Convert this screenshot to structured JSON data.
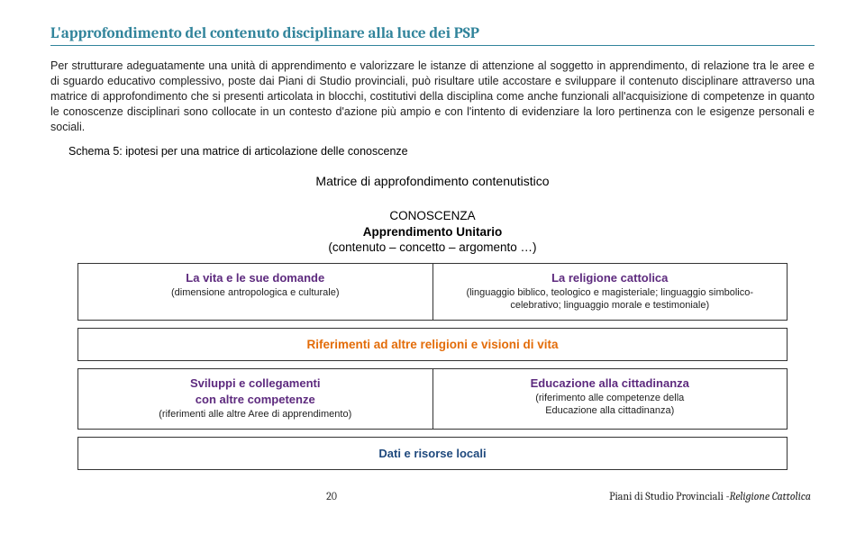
{
  "title": "L'approfondimento del contenuto disciplinare alla luce dei PSP",
  "body": "Per strutturare adeguatamente una unità di apprendimento e valorizzare le istanze di attenzione al soggetto in apprendimento, di relazione tra le aree e di sguardo educativo complessivo, poste dai Piani di Studio provinciali, può risultare utile accostare e sviluppare il contenuto disciplinare attraverso una matrice di approfondimento che si presenti articolata in blocchi, costitutivi della disciplina come anche funzionali all'acquisizione di competenze in quanto le conoscenze disciplinari sono collocate in un contesto d'azione più ampio e con l'intento di evidenziare la loro pertinenza con le esigenze personali e sociali.",
  "schema_label": "Schema 5: ipotesi per una matrice di articolazione delle conoscenze",
  "matrice_title": "Matrice di approfondimento contenutistico",
  "conoscenza": {
    "line1": "CONOSCENZA",
    "line2": "Apprendimento Unitario",
    "line3": "(contenuto – concetto – argomento …)"
  },
  "boxes": {
    "row1": {
      "left": {
        "title": "La vita e le sue domande",
        "sub": "(dimensione antropologica e culturale)"
      },
      "right": {
        "title": "La religione cattolica",
        "sub": "(linguaggio biblico, teologico e magisteriale; linguaggio simbolico-celebrativo; linguaggio morale e testimoniale)"
      }
    },
    "row2": {
      "full": {
        "title": "Riferimenti ad altre religioni e visioni di vita"
      }
    },
    "row3": {
      "left": {
        "title_l1": "Sviluppi e collegamenti",
        "title_l2": "con altre competenze",
        "sub": "(riferimenti alle altre Aree di apprendimento)"
      },
      "right": {
        "title": "Educazione alla cittadinanza",
        "sub_l1": "(riferimento alle competenze della",
        "sub_l2": "Educazione alla cittadinanza)"
      }
    },
    "row4": {
      "full": {
        "title": "Dati e risorse locali"
      }
    }
  },
  "footer": {
    "page_num": "20",
    "right_plain": "Piani di Studio Provinciali -",
    "right_italic": "Religione Cattolica"
  },
  "colors": {
    "teal": "#31849b",
    "purple": "#5d2a7e",
    "orange": "#e36c09",
    "blue": "#1f497d"
  }
}
